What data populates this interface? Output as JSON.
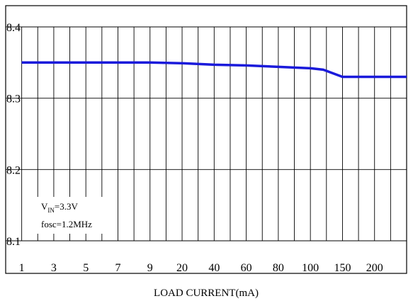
{
  "chart_data": {
    "type": "line",
    "title": "",
    "xlabel": "LOAD CURRENT(mA)",
    "ylabel": "",
    "x_ticks": [
      "1",
      "3",
      "5",
      "7",
      "9",
      "20",
      "40",
      "60",
      "80",
      "100",
      "150",
      "200"
    ],
    "y_ticks": [
      "8.4",
      "8.3",
      "8.2",
      "8.1"
    ],
    "ylim": [
      8.1,
      8.4
    ],
    "grid": true,
    "series": [
      {
        "color": "#1a1adb",
        "points": [
          {
            "x": "1",
            "y": 8.35
          },
          {
            "x": "3",
            "y": 8.35
          },
          {
            "x": "5",
            "y": 8.35
          },
          {
            "x": "7",
            "y": 8.35
          },
          {
            "x": "9",
            "y": 8.35
          },
          {
            "x": "20",
            "y": 8.349
          },
          {
            "x": "40",
            "y": 8.347
          },
          {
            "x": "60",
            "y": 8.346
          },
          {
            "x": "80",
            "y": 8.344
          },
          {
            "x": "100",
            "y": 8.342
          },
          {
            "x": "120",
            "y": 8.34
          },
          {
            "x": "150",
            "y": 8.33
          },
          {
            "x": "200",
            "y": 8.33
          },
          {
            "x": "250",
            "y": 8.33
          }
        ]
      }
    ],
    "annotations": {
      "vin_main": "V",
      "vin_sub": "IN",
      "vin_rest": "=3.3V",
      "fosc": "fosc=1.2MHz"
    }
  }
}
